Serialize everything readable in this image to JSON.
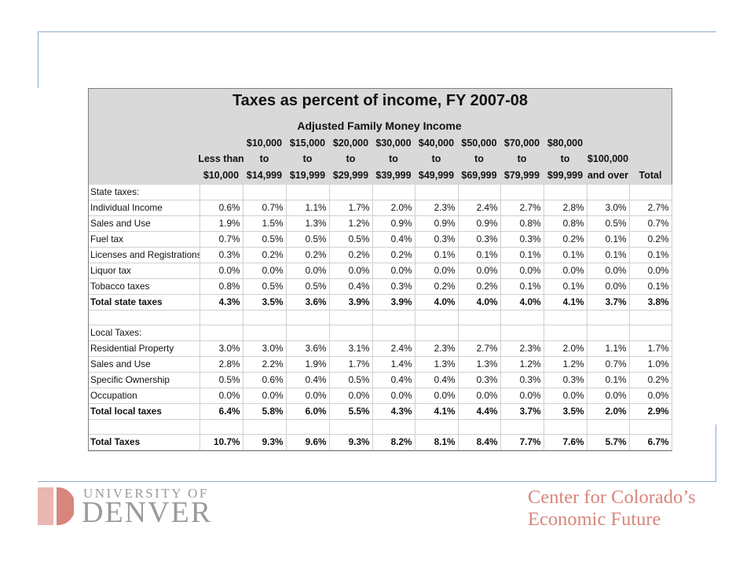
{
  "table": {
    "title": "Taxes as percent of income, FY 2007-08",
    "subtitle": "Adjusted Family Money Income",
    "columns": [
      [
        "Less than",
        "$10,000"
      ],
      [
        "$10,000",
        "to",
        "$14,999"
      ],
      [
        "$15,000",
        "to",
        "$19,999"
      ],
      [
        "$20,000",
        "to",
        "$29,999"
      ],
      [
        "$30,000",
        "to",
        "$39,999"
      ],
      [
        "$40,000",
        "to",
        "$49,999"
      ],
      [
        "$50,000",
        "to",
        "$69,999"
      ],
      [
        "$70,000",
        "to",
        "$79,999"
      ],
      [
        "$80,000",
        "to",
        "$99,999"
      ],
      [
        "$100,000",
        "and over"
      ],
      [
        "Total"
      ]
    ],
    "rows": [
      {
        "label": "State taxes:",
        "values": [],
        "bold": false
      },
      {
        "label": "Individual Income",
        "values": [
          "0.6%",
          "0.7%",
          "1.1%",
          "1.7%",
          "2.0%",
          "2.3%",
          "2.4%",
          "2.7%",
          "2.8%",
          "3.0%",
          "2.7%"
        ],
        "bold": false
      },
      {
        "label": "Sales and Use",
        "values": [
          "1.9%",
          "1.5%",
          "1.3%",
          "1.2%",
          "0.9%",
          "0.9%",
          "0.9%",
          "0.8%",
          "0.8%",
          "0.5%",
          "0.7%"
        ],
        "bold": false
      },
      {
        "label": "Fuel tax",
        "values": [
          "0.7%",
          "0.5%",
          "0.5%",
          "0.5%",
          "0.4%",
          "0.3%",
          "0.3%",
          "0.3%",
          "0.2%",
          "0.1%",
          "0.2%"
        ],
        "bold": false
      },
      {
        "label": "Licenses and Registrations",
        "values": [
          "0.3%",
          "0.2%",
          "0.2%",
          "0.2%",
          "0.2%",
          "0.1%",
          "0.1%",
          "0.1%",
          "0.1%",
          "0.1%",
          "0.1%"
        ],
        "bold": false
      },
      {
        "label": "Liquor tax",
        "values": [
          "0.0%",
          "0.0%",
          "0.0%",
          "0.0%",
          "0.0%",
          "0.0%",
          "0.0%",
          "0.0%",
          "0.0%",
          "0.0%",
          "0.0%"
        ],
        "bold": false
      },
      {
        "label": "Tobacco taxes",
        "values": [
          "0.8%",
          "0.5%",
          "0.5%",
          "0.4%",
          "0.3%",
          "0.2%",
          "0.2%",
          "0.1%",
          "0.1%",
          "0.0%",
          "0.1%"
        ],
        "bold": false
      },
      {
        "label": "Total state taxes",
        "values": [
          "4.3%",
          "3.5%",
          "3.6%",
          "3.9%",
          "3.9%",
          "4.0%",
          "4.0%",
          "4.0%",
          "4.1%",
          "3.7%",
          "3.8%"
        ],
        "bold": true
      },
      {
        "label": "",
        "values": [],
        "bold": false
      },
      {
        "label": "Local Taxes:",
        "values": [],
        "bold": false
      },
      {
        "label": "Residential Property",
        "values": [
          "3.0%",
          "3.0%",
          "3.6%",
          "3.1%",
          "2.4%",
          "2.3%",
          "2.7%",
          "2.3%",
          "2.0%",
          "1.1%",
          "1.7%"
        ],
        "bold": false
      },
      {
        "label": "Sales and Use",
        "values": [
          "2.8%",
          "2.2%",
          "1.9%",
          "1.7%",
          "1.4%",
          "1.3%",
          "1.3%",
          "1.2%",
          "1.2%",
          "0.7%",
          "1.0%"
        ],
        "bold": false
      },
      {
        "label": "Specific Ownership",
        "values": [
          "0.5%",
          "0.6%",
          "0.4%",
          "0.5%",
          "0.4%",
          "0.4%",
          "0.3%",
          "0.3%",
          "0.3%",
          "0.1%",
          "0.2%"
        ],
        "bold": false
      },
      {
        "label": "Occupation",
        "values": [
          "0.0%",
          "0.0%",
          "0.0%",
          "0.0%",
          "0.0%",
          "0.0%",
          "0.0%",
          "0.0%",
          "0.0%",
          "0.0%",
          "0.0%"
        ],
        "bold": false
      },
      {
        "label": "Total local taxes",
        "values": [
          "6.4%",
          "5.8%",
          "6.0%",
          "5.5%",
          "4.3%",
          "4.1%",
          "4.4%",
          "3.7%",
          "3.5%",
          "2.0%",
          "2.9%"
        ],
        "bold": true
      },
      {
        "label": "",
        "values": [],
        "bold": false
      },
      {
        "label": "Total Taxes",
        "values": [
          "10.7%",
          "9.3%",
          "9.6%",
          "9.3%",
          "8.2%",
          "8.1%",
          "8.4%",
          "7.7%",
          "7.6%",
          "5.7%",
          "6.7%"
        ],
        "bold": true
      }
    ]
  },
  "footer": {
    "university_line": "UNIVERSITY OF",
    "denver_line": "DENVER",
    "center_line1": "Center for Colorado’s",
    "center_line2": "Economic Future"
  },
  "colors": {
    "frame": "#8fa9cc",
    "header_bg": "#d9d9d9",
    "du_mark_light": "#e8b7b0",
    "du_mark_dark": "#d8867c",
    "center_text": "#d8867c"
  }
}
